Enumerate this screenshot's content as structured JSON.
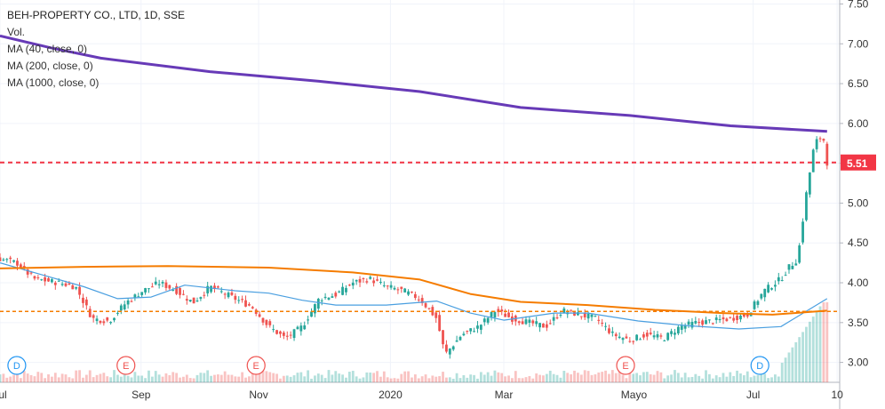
{
  "legend": {
    "title": "BEH-PROPERTY CO., LTD, 1D, SSE",
    "vol": "Vol.",
    "ma1": "MA (40, close, 0)",
    "ma2": "MA (200, close, 0)",
    "ma3": "MA (1000, close, 0)"
  },
  "colors": {
    "up": "#26a69a",
    "down": "#ef5350",
    "ma40": "#4a9fe0",
    "ma200": "#f57c00",
    "ma1000": "#673ab7",
    "price_line": "#f23645",
    "support_line": "#f57c00"
  },
  "chart_data": {
    "type": "candlestick",
    "title": "BEH-PROPERTY CO., LTD, 1D, SSE",
    "x_labels": [
      "Jul",
      "Sep",
      "Nov",
      "2020",
      "Mar",
      "Mayo",
      "Jul",
      "10"
    ],
    "y_ticks": [
      "7.50",
      "7.00",
      "6.50",
      "6.00",
      "5.50",
      "5.00",
      "4.50",
      "4.00",
      "3.50",
      "3.00"
    ],
    "ylim": [
      2.75,
      7.55
    ],
    "last_price": "5.51",
    "horizontal_level": 3.64,
    "events": [
      {
        "label": "D",
        "x_frac": 0.02
      },
      {
        "label": "E",
        "x_frac": 0.15
      },
      {
        "label": "E",
        "x_frac": 0.305
      },
      {
        "label": "E",
        "x_frac": 0.745
      },
      {
        "label": "D",
        "x_frac": 0.905
      }
    ],
    "ma_1000": [
      [
        0,
        7.1
      ],
      [
        0.06,
        6.95
      ],
      [
        0.12,
        6.82
      ],
      [
        0.25,
        6.65
      ],
      [
        0.38,
        6.53
      ],
      [
        0.5,
        6.4
      ],
      [
        0.62,
        6.2
      ],
      [
        0.75,
        6.1
      ],
      [
        0.87,
        5.97
      ],
      [
        0.985,
        5.9
      ]
    ],
    "ma_200": [
      [
        0,
        4.18
      ],
      [
        0.1,
        4.2
      ],
      [
        0.2,
        4.21
      ],
      [
        0.32,
        4.19
      ],
      [
        0.42,
        4.13
      ],
      [
        0.5,
        4.04
      ],
      [
        0.56,
        3.86
      ],
      [
        0.62,
        3.76
      ],
      [
        0.7,
        3.72
      ],
      [
        0.78,
        3.66
      ],
      [
        0.86,
        3.62
      ],
      [
        0.92,
        3.6
      ],
      [
        0.985,
        3.65
      ]
    ],
    "ma_40": [
      [
        0,
        4.25
      ],
      [
        0.05,
        4.1
      ],
      [
        0.1,
        3.95
      ],
      [
        0.14,
        3.8
      ],
      [
        0.18,
        3.82
      ],
      [
        0.22,
        3.97
      ],
      [
        0.28,
        3.9
      ],
      [
        0.32,
        3.87
      ],
      [
        0.36,
        3.78
      ],
      [
        0.4,
        3.72
      ],
      [
        0.46,
        3.72
      ],
      [
        0.52,
        3.77
      ],
      [
        0.56,
        3.62
      ],
      [
        0.6,
        3.53
      ],
      [
        0.66,
        3.62
      ],
      [
        0.7,
        3.62
      ],
      [
        0.76,
        3.52
      ],
      [
        0.82,
        3.46
      ],
      [
        0.88,
        3.42
      ],
      [
        0.93,
        3.45
      ],
      [
        0.985,
        3.8
      ]
    ],
    "price_path": [
      [
        0,
        4.3
      ],
      [
        0.02,
        4.25
      ],
      [
        0.04,
        4.05
      ],
      [
        0.07,
        4.0
      ],
      [
        0.09,
        3.95
      ],
      [
        0.11,
        3.55
      ],
      [
        0.13,
        3.52
      ],
      [
        0.15,
        3.75
      ],
      [
        0.17,
        3.9
      ],
      [
        0.19,
        4.0
      ],
      [
        0.21,
        3.9
      ],
      [
        0.23,
        3.75
      ],
      [
        0.25,
        3.95
      ],
      [
        0.27,
        3.85
      ],
      [
        0.3,
        3.7
      ],
      [
        0.32,
        3.45
      ],
      [
        0.34,
        3.3
      ],
      [
        0.36,
        3.45
      ],
      [
        0.38,
        3.8
      ],
      [
        0.4,
        3.85
      ],
      [
        0.42,
        4.0
      ],
      [
        0.44,
        4.05
      ],
      [
        0.46,
        3.95
      ],
      [
        0.48,
        3.9
      ],
      [
        0.5,
        3.8
      ],
      [
        0.52,
        3.55
      ],
      [
        0.53,
        3.1
      ],
      [
        0.55,
        3.35
      ],
      [
        0.57,
        3.45
      ],
      [
        0.59,
        3.65
      ],
      [
        0.61,
        3.55
      ],
      [
        0.63,
        3.5
      ],
      [
        0.65,
        3.45
      ],
      [
        0.67,
        3.65
      ],
      [
        0.69,
        3.6
      ],
      [
        0.71,
        3.55
      ],
      [
        0.73,
        3.35
      ],
      [
        0.75,
        3.28
      ],
      [
        0.77,
        3.35
      ],
      [
        0.79,
        3.3
      ],
      [
        0.81,
        3.45
      ],
      [
        0.83,
        3.5
      ],
      [
        0.85,
        3.52
      ],
      [
        0.87,
        3.55
      ],
      [
        0.89,
        3.6
      ],
      [
        0.91,
        3.9
      ],
      [
        0.93,
        4.05
      ],
      [
        0.94,
        4.2
      ],
      [
        0.95,
        4.3
      ],
      [
        0.96,
        5.1
      ],
      [
        0.97,
        5.75
      ],
      [
        0.98,
        5.85
      ],
      [
        0.985,
        5.51
      ]
    ]
  }
}
